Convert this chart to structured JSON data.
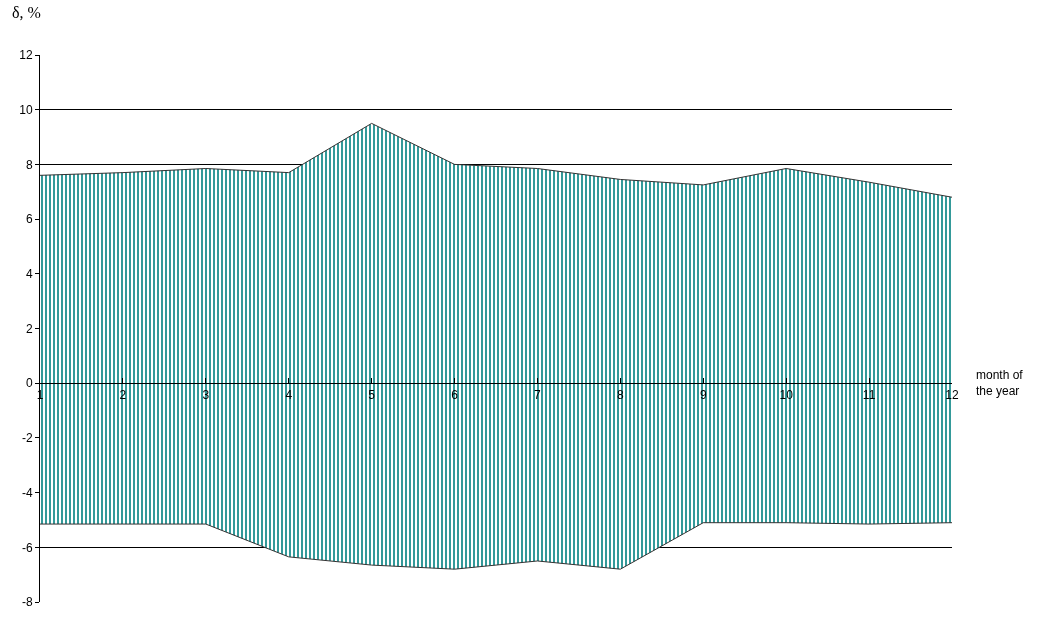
{
  "chart_data": {
    "type": "area",
    "ylabel": "δ, %",
    "xlabel": "month of the year",
    "x": [
      1,
      2,
      3,
      4,
      5,
      6,
      7,
      8,
      9,
      10,
      11,
      12
    ],
    "series": [
      {
        "color": "#008080",
        "values": [
          7.6,
          7.7,
          7.85,
          7.7,
          9.5,
          8.0,
          7.85,
          7.45,
          7.25,
          7.85,
          7.35,
          6.8
        ]
      },
      {
        "color": "#008080",
        "values": [
          -5.15,
          -5.15,
          -5.15,
          -6.35,
          -6.65,
          -6.8,
          -6.5,
          -6.8,
          -5.1,
          -5.1,
          -5.15,
          -5.1
        ]
      }
    ],
    "xlim": [
      1,
      12
    ],
    "xticks": [
      1,
      2,
      3,
      4,
      5,
      6,
      7,
      8,
      9,
      10,
      11,
      12
    ],
    "ylim": [
      -8,
      12
    ],
    "yticks": [
      -8,
      -6,
      -4,
      -2,
      0,
      2,
      4,
      6,
      8,
      10,
      12
    ],
    "grid": "y",
    "marker": "none",
    "line_style": "solid"
  }
}
